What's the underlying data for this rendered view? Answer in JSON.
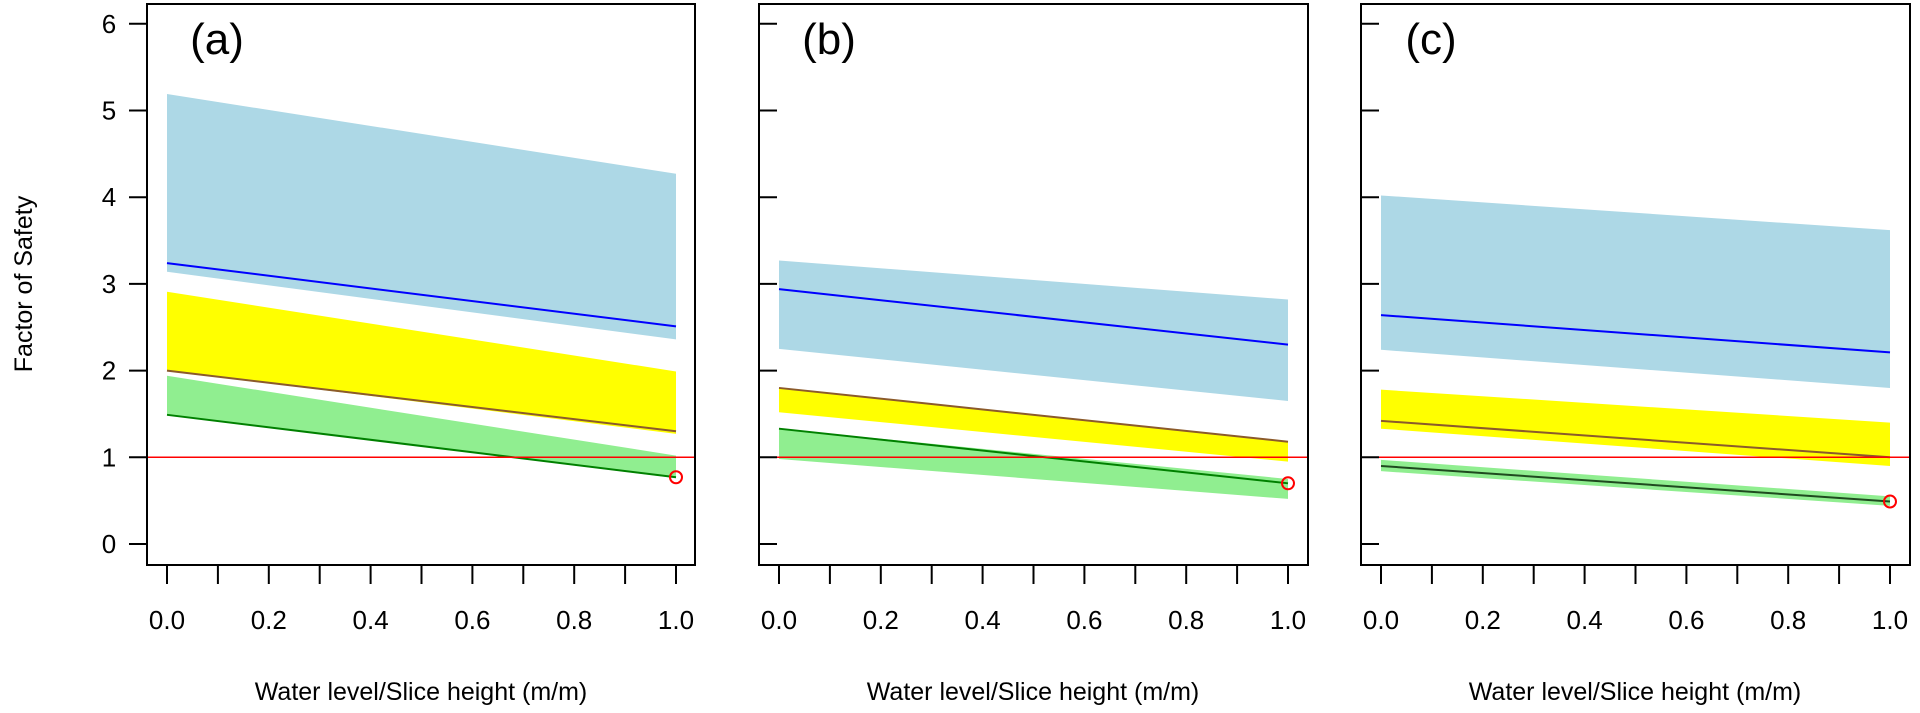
{
  "chart_data": [
    {
      "type": "area",
      "panel_label": "(a)",
      "xlabel": "Water level/Slice height (m/m)",
      "ylabel": "Factor of Safety",
      "xlim": [
        0,
        1
      ],
      "ylim": [
        0,
        6
      ],
      "x_ticks": [
        "0.0",
        "0.2",
        "0.4",
        "0.6",
        "0.8",
        "1.0"
      ],
      "y_ticks": [
        "0",
        "1",
        "2",
        "3",
        "4",
        "5",
        "6"
      ],
      "grid": false,
      "reference_line": {
        "y": 1,
        "color": "#FF0000"
      },
      "bands": [
        {
          "color": "#ADD8E6",
          "x": [
            0,
            1
          ],
          "upper": [
            5.19,
            4.27
          ],
          "lower": [
            3.14,
            2.36
          ]
        },
        {
          "color": "#FFFF00",
          "x": [
            0,
            1
          ],
          "upper": [
            2.91,
            1.99
          ],
          "lower": [
            2.0,
            1.27
          ]
        },
        {
          "color": "#90EE90",
          "x": [
            0,
            1
          ],
          "upper": [
            1.94,
            1.02
          ],
          "lower": [
            1.49,
            0.76
          ]
        }
      ],
      "lines": [
        {
          "color": "#0000FF",
          "x": [
            0,
            1
          ],
          "y": [
            3.24,
            2.51
          ]
        },
        {
          "color": "#8B5A2B",
          "x": [
            0,
            1
          ],
          "y": [
            2.0,
            1.3
          ]
        },
        {
          "color": "#008000",
          "x": [
            0,
            1
          ],
          "y": [
            1.49,
            0.77
          ]
        }
      ],
      "marker": {
        "x": 1.0,
        "y": 0.77,
        "color": "#FF0000"
      }
    },
    {
      "type": "area",
      "panel_label": "(b)",
      "xlabel": "Water level/Slice height (m/m)",
      "xlim": [
        0,
        1
      ],
      "ylim": [
        0,
        6
      ],
      "x_ticks": [
        "0.0",
        "0.2",
        "0.4",
        "0.6",
        "0.8",
        "1.0"
      ],
      "grid": false,
      "reference_line": {
        "y": 1,
        "color": "#FF0000"
      },
      "bands": [
        {
          "color": "#ADD8E6",
          "x": [
            0,
            1
          ],
          "upper": [
            3.27,
            2.82
          ],
          "lower": [
            2.25,
            1.65
          ]
        },
        {
          "color": "#FFFF00",
          "x": [
            0,
            1
          ],
          "upper": [
            1.8,
            1.18
          ],
          "lower": [
            1.52,
            0.95
          ]
        },
        {
          "color": "#90EE90",
          "x": [
            0,
            1
          ],
          "upper": [
            1.33,
            0.75
          ],
          "lower": [
            0.98,
            0.52
          ]
        }
      ],
      "lines": [
        {
          "color": "#0000FF",
          "x": [
            0,
            1
          ],
          "y": [
            2.94,
            2.3
          ]
        },
        {
          "color": "#8B5A2B",
          "x": [
            0,
            1
          ],
          "y": [
            1.8,
            1.18
          ]
        },
        {
          "color": "#008000",
          "x": [
            0,
            1
          ],
          "y": [
            1.33,
            0.7
          ]
        }
      ],
      "marker": {
        "x": 1.0,
        "y": 0.7,
        "color": "#FF0000"
      }
    },
    {
      "type": "area",
      "panel_label": "(c)",
      "xlabel": "Water level/Slice height (m/m)",
      "xlim": [
        0,
        1
      ],
      "ylim": [
        0,
        6
      ],
      "x_ticks": [
        "0.0",
        "0.2",
        "0.4",
        "0.6",
        "0.8",
        "1.0"
      ],
      "grid": false,
      "reference_line": {
        "y": 1,
        "color": "#FF0000"
      },
      "bands": [
        {
          "color": "#ADD8E6",
          "x": [
            0,
            1
          ],
          "upper": [
            4.02,
            3.62
          ],
          "lower": [
            2.24,
            1.8
          ]
        },
        {
          "color": "#FFFF00",
          "x": [
            0,
            1
          ],
          "upper": [
            1.78,
            1.4
          ],
          "lower": [
            1.33,
            0.9
          ]
        },
        {
          "color": "#90EE90",
          "x": [
            0,
            1
          ],
          "upper": [
            0.97,
            0.55
          ],
          "lower": [
            0.84,
            0.44
          ]
        }
      ],
      "lines": [
        {
          "color": "#0000FF",
          "x": [
            0,
            1
          ],
          "y": [
            2.64,
            2.21
          ]
        },
        {
          "color": "#8B5A2B",
          "x": [
            0,
            1
          ],
          "y": [
            1.42,
            1.0
          ]
        },
        {
          "color": "#1F4A1F",
          "x": [
            0,
            1
          ],
          "y": [
            0.9,
            0.49
          ]
        }
      ],
      "marker": {
        "x": 1.0,
        "y": 0.49,
        "color": "#FF0000"
      }
    }
  ]
}
